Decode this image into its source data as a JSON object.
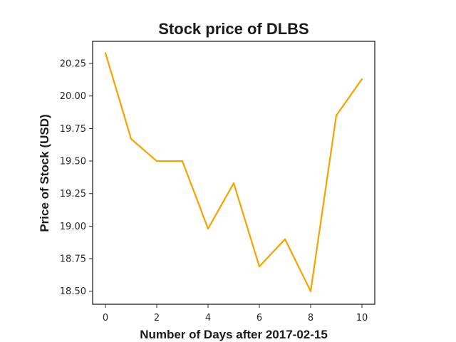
{
  "chart_data": {
    "type": "line",
    "title": "Stock price of DLBS",
    "xlabel": "Number of Days after 2017-02-15",
    "ylabel": "Price of Stock (USD)",
    "x": [
      0,
      1,
      2,
      3,
      4,
      5,
      6,
      7,
      8,
      9,
      10
    ],
    "series": [
      {
        "values": [
          20.33,
          19.67,
          19.5,
          19.5,
          18.98,
          19.33,
          18.69,
          18.9,
          18.5,
          19.85,
          20.13
        ]
      }
    ],
    "xlim": [
      -0.5,
      10.5
    ],
    "ylim": [
      18.4,
      20.42
    ],
    "xticks": [
      0,
      2,
      4,
      6,
      8,
      10
    ],
    "xtick_labels": [
      "0",
      "2",
      "4",
      "6",
      "8",
      "10"
    ],
    "yticks": [
      18.5,
      18.75,
      19.0,
      19.25,
      19.5,
      19.75,
      20.0,
      20.25
    ],
    "ytick_labels": [
      "18.50",
      "18.75",
      "19.00",
      "19.25",
      "19.50",
      "19.75",
      "20.00",
      "20.25"
    ],
    "grid": false,
    "line_color": "#f5a300"
  }
}
